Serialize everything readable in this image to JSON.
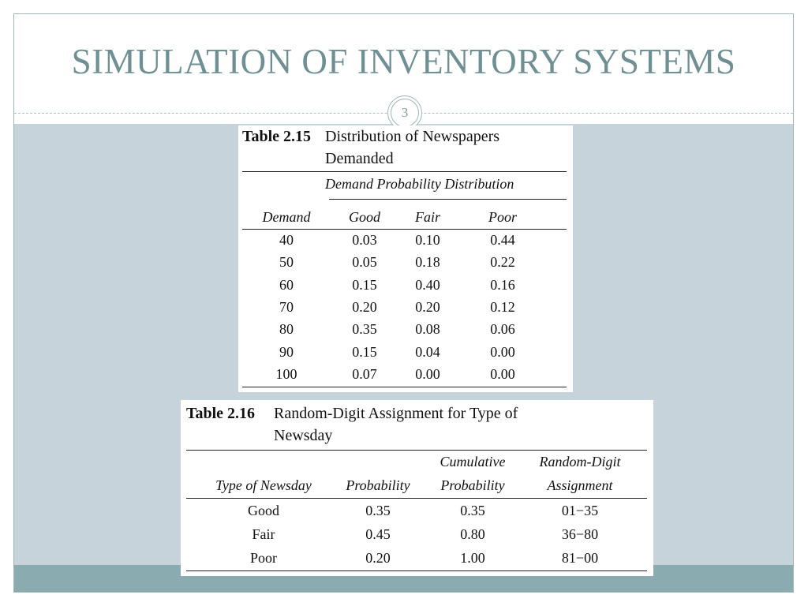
{
  "slide": {
    "title": "SIMULATION OF INVENTORY SYSTEMS",
    "number": "3"
  },
  "table_2_15": {
    "label": "Table 2.15",
    "caption_line1": "Distribution of Newspapers",
    "caption_line2": "Demanded",
    "group_header": "Demand Probability Distribution",
    "columns": [
      "Demand",
      "Good",
      "Fair",
      "Poor"
    ],
    "rows": [
      [
        "40",
        "0.03",
        "0.10",
        "0.44"
      ],
      [
        "50",
        "0.05",
        "0.18",
        "0.22"
      ],
      [
        "60",
        "0.15",
        "0.40",
        "0.16"
      ],
      [
        "70",
        "0.20",
        "0.20",
        "0.12"
      ],
      [
        "80",
        "0.35",
        "0.08",
        "0.06"
      ],
      [
        "90",
        "0.15",
        "0.04",
        "0.00"
      ],
      [
        "100",
        "0.07",
        "0.00",
        "0.00"
      ]
    ]
  },
  "table_2_16": {
    "label": "Table 2.16",
    "caption_line1": "Random-Digit Assignment for Type of",
    "caption_line2": "Newsday",
    "header_top": [
      "",
      "",
      "Cumulative",
      "Random-Digit"
    ],
    "header_bottom": [
      "Type of Newsday",
      "Probability",
      "Probability",
      "Assignment"
    ],
    "rows": [
      [
        "Good",
        "0.35",
        "0.35",
        "01−35"
      ],
      [
        "Fair",
        "0.45",
        "0.80",
        "36−80"
      ],
      [
        "Poor",
        "0.20",
        "1.00",
        "81−00"
      ]
    ]
  }
}
